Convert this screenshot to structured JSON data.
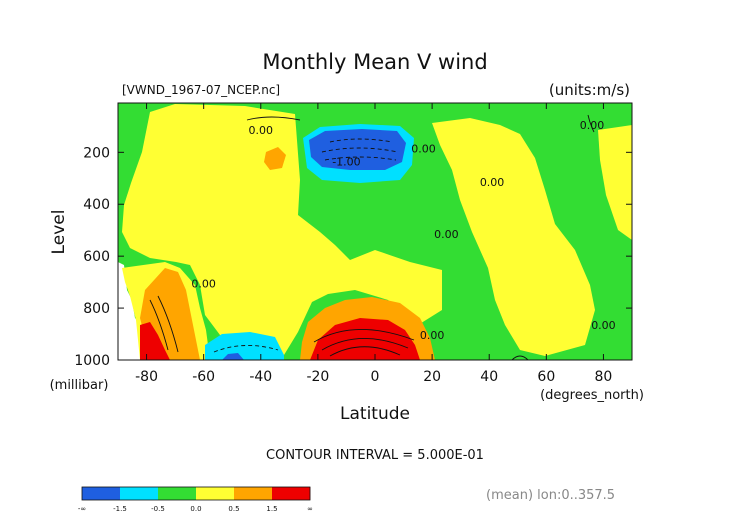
{
  "chart_data": {
    "type": "heatmap",
    "title": "Monthly Mean V wind",
    "dataset_label": "[VWND_1967-07_NCEP.nc]",
    "units_label": "(units:m/s)",
    "xlabel": "Latitude",
    "x_unit": "(degrees_north)",
    "ylabel": "Level",
    "y_unit": "(millibar)",
    "xlim": [
      -90,
      90
    ],
    "ylim": [
      1000,
      10
    ],
    "x_ticks": [
      -80,
      -60,
      -40,
      -20,
      0,
      20,
      40,
      60,
      80
    ],
    "y_ticks": [
      200,
      400,
      600,
      800,
      1000
    ],
    "contour_interval_text": "CONTOUR INTERVAL = 5.000E-01",
    "mean_text": "(mean) lon:0..357.5",
    "contour_labels": [
      {
        "text": "0.00",
        "lat": -40,
        "level": 130
      },
      {
        "text": "-1.00",
        "lat": -10,
        "level": 250
      },
      {
        "text": "0.00",
        "lat": 17,
        "level": 200
      },
      {
        "text": "0.00",
        "lat": 41,
        "level": 330
      },
      {
        "text": "0.00",
        "lat": 25,
        "level": 530
      },
      {
        "text": "0.00",
        "lat": -60,
        "level": 720
      },
      {
        "text": "0.00",
        "lat": 20,
        "level": 920
      },
      {
        "text": "0.00",
        "lat": 76,
        "level": 110
      },
      {
        "text": "0.00",
        "lat": 80,
        "level": 880
      }
    ],
    "colorbar": {
      "bins": [
        {
          "color": "#1f5fe0"
        },
        {
          "color": "#1f5fe0"
        },
        {
          "color": "#00e0ff"
        },
        {
          "color": "#00e0ff"
        },
        {
          "color": "#33dd33"
        },
        {
          "color": "#33dd33"
        },
        {
          "color": "#ffff33"
        },
        {
          "color": "#ffff33"
        },
        {
          "color": "#ffa500"
        },
        {
          "color": "#ffa500"
        },
        {
          "color": "#ee0000"
        },
        {
          "color": "#ee0000"
        }
      ],
      "tick_labels": [
        "-∞",
        "-1.5",
        "-0.5",
        "0.0",
        "0.5",
        "1.5",
        "∞"
      ]
    },
    "colors": {
      "neg_strong": "#1f5fe0",
      "neg": "#00e0ff",
      "near_zero": "#33dd33",
      "pos": "#ffff33",
      "pos_mid": "#ffa500",
      "pos_strong": "#ee0000"
    }
  }
}
